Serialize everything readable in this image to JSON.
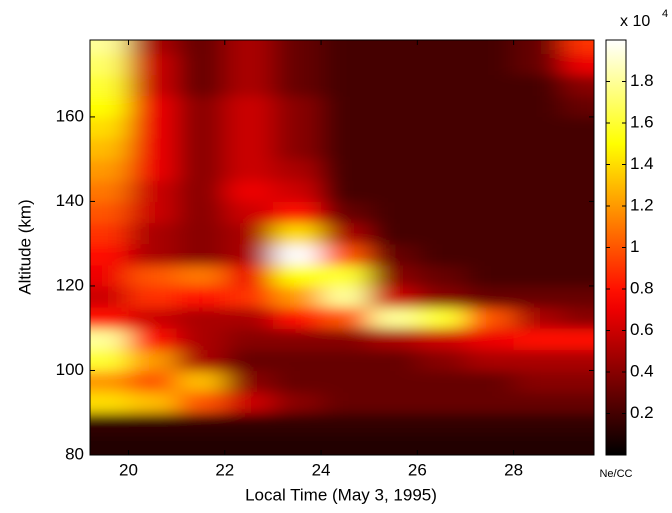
{
  "chart_data": {
    "type": "heatmap",
    "xlabel": "Local Time (May 3, 1995)",
    "ylabel": "Altitude (km)",
    "colorbar_multiplier": "x 10",
    "colorbar_exponent": "4",
    "colorbar_unit": "Ne/CC",
    "colormap": "hot",
    "x": [
      19.5,
      20.5,
      21.5,
      22.5,
      23.5,
      24.5,
      25.5,
      26.5,
      27.5,
      28.5,
      29.5
    ],
    "y": [
      82.5,
      87.5,
      92.5,
      97.5,
      102.5,
      107.5,
      112.5,
      117.5,
      122.5,
      127.5,
      132.5,
      137.5,
      142.5,
      147.5,
      152.5,
      157.5,
      162.5,
      167.5,
      172.5,
      177.5
    ],
    "z": [
      [
        0.1,
        0.1,
        0.1,
        0.1,
        0.1,
        0.1,
        0.1,
        0.1,
        0.1,
        0.1,
        0.1
      ],
      [
        0.15,
        0.15,
        0.15,
        0.15,
        0.15,
        0.15,
        0.15,
        0.15,
        0.15,
        0.15,
        0.15
      ],
      [
        1.4,
        1.3,
        1.0,
        0.6,
        0.4,
        0.3,
        0.3,
        0.3,
        0.3,
        0.3,
        0.3
      ],
      [
        1.2,
        1.0,
        1.3,
        0.4,
        0.3,
        0.3,
        0.3,
        0.3,
        0.3,
        0.4,
        0.4
      ],
      [
        1.6,
        1.2,
        0.5,
        0.3,
        0.3,
        0.3,
        0.3,
        0.4,
        0.5,
        0.5,
        0.5
      ],
      [
        1.8,
        0.8,
        0.5,
        0.4,
        0.4,
        0.4,
        0.5,
        0.6,
        0.7,
        0.8,
        0.8
      ],
      [
        0.8,
        0.6,
        0.5,
        0.5,
        0.8,
        1.0,
        1.8,
        1.6,
        1.0,
        0.5,
        0.4
      ],
      [
        0.6,
        0.9,
        0.8,
        0.9,
        1.2,
        1.8,
        0.6,
        0.4,
        0.3,
        0.3,
        0.3
      ],
      [
        0.7,
        1.0,
        1.1,
        0.7,
        1.5,
        1.6,
        0.4,
        0.3,
        0.2,
        0.2,
        0.2
      ],
      [
        0.8,
        0.5,
        0.4,
        0.5,
        2.0,
        1.0,
        0.3,
        0.2,
        0.2,
        0.2,
        0.2
      ],
      [
        0.9,
        0.5,
        0.4,
        0.5,
        1.4,
        0.5,
        0.2,
        0.2,
        0.2,
        0.2,
        0.2
      ],
      [
        1.0,
        0.6,
        0.4,
        0.6,
        0.8,
        0.3,
        0.2,
        0.2,
        0.2,
        0.2,
        0.2
      ],
      [
        1.1,
        0.6,
        0.4,
        0.7,
        0.6,
        0.2,
        0.2,
        0.2,
        0.2,
        0.2,
        0.2
      ],
      [
        1.2,
        0.7,
        0.4,
        0.6,
        0.5,
        0.2,
        0.2,
        0.2,
        0.2,
        0.2,
        0.2
      ],
      [
        1.3,
        0.7,
        0.4,
        0.6,
        0.4,
        0.2,
        0.2,
        0.2,
        0.2,
        0.2,
        0.2
      ],
      [
        1.4,
        0.7,
        0.4,
        0.6,
        0.4,
        0.2,
        0.2,
        0.2,
        0.2,
        0.2,
        0.2
      ],
      [
        1.5,
        0.7,
        0.4,
        0.6,
        0.4,
        0.2,
        0.2,
        0.2,
        0.2,
        0.2,
        0.3
      ],
      [
        1.6,
        0.6,
        0.3,
        0.5,
        0.3,
        0.2,
        0.2,
        0.2,
        0.2,
        0.2,
        0.4
      ],
      [
        1.7,
        0.6,
        0.3,
        0.5,
        0.3,
        0.2,
        0.2,
        0.2,
        0.2,
        0.3,
        0.7
      ],
      [
        1.8,
        0.5,
        0.3,
        0.5,
        0.3,
        0.2,
        0.2,
        0.2,
        0.2,
        0.3,
        0.9
      ]
    ],
    "xlim": [
      19.2,
      29.67
    ],
    "ylim": [
      80,
      178.2
    ],
    "xticks": [
      20,
      22,
      24,
      26,
      28
    ],
    "yticks": [
      80,
      100,
      120,
      140,
      160
    ],
    "clim": [
      0,
      2
    ],
    "cticks": [
      0.2,
      0.4,
      0.6,
      0.8,
      1,
      1.2,
      1.4,
      1.6,
      1.8
    ]
  }
}
